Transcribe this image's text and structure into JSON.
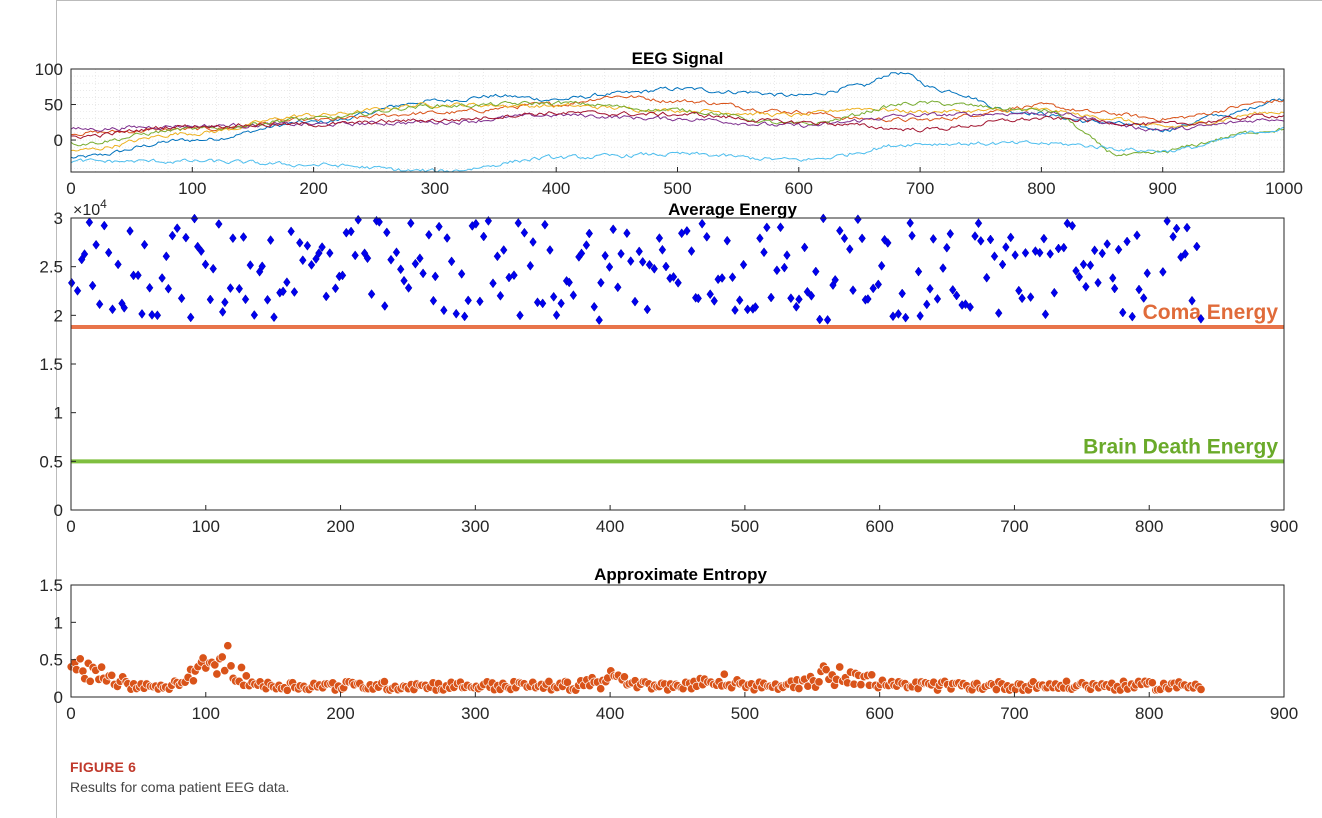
{
  "figure": {
    "label": "FIGURE 6",
    "caption": "Results for coma patient EEG data."
  },
  "chart_data": [
    {
      "type": "line",
      "title": "EEG Signal",
      "xlim": [
        0,
        1000
      ],
      "ylim": [
        -45,
        100
      ],
      "xticks": [
        0,
        100,
        200,
        300,
        400,
        500,
        600,
        700,
        800,
        900,
        1000
      ],
      "yticks": [
        0,
        50,
        100
      ],
      "grid": true,
      "series": [
        {
          "color": "#0072BD",
          "x": [
            0,
            100,
            200,
            300,
            350,
            400,
            450,
            500,
            550,
            600,
            650,
            680,
            720,
            780,
            850,
            900,
            950,
            1000
          ],
          "y": [
            -25,
            0,
            25,
            55,
            62,
            57,
            65,
            72,
            68,
            62,
            75,
            95,
            70,
            40,
            25,
            15,
            35,
            58
          ]
        },
        {
          "color": "#D95319",
          "x": [
            0,
            100,
            200,
            300,
            400,
            450,
            500,
            600,
            650,
            700,
            800,
            850,
            900,
            1000
          ],
          "y": [
            10,
            15,
            28,
            38,
            50,
            62,
            55,
            40,
            30,
            28,
            48,
            38,
            30,
            55
          ]
        },
        {
          "color": "#EDB120",
          "x": [
            0,
            100,
            200,
            300,
            400,
            500,
            600,
            650,
            700,
            800,
            850,
            900,
            1000
          ],
          "y": [
            -15,
            10,
            35,
            50,
            48,
            42,
            35,
            45,
            40,
            42,
            32,
            18,
            40
          ]
        },
        {
          "color": "#7E2F8E",
          "x": [
            0,
            100,
            200,
            300,
            400,
            500,
            600,
            700,
            800,
            900,
            1000
          ],
          "y": [
            15,
            20,
            22,
            25,
            35,
            30,
            20,
            35,
            38,
            15,
            30
          ]
        },
        {
          "color": "#77AC30",
          "x": [
            0,
            100,
            200,
            300,
            400,
            500,
            600,
            700,
            800,
            870,
            1000
          ],
          "y": [
            -5,
            15,
            30,
            48,
            52,
            42,
            22,
            52,
            42,
            -22,
            15
          ]
        },
        {
          "color": "#4DBEEE",
          "x": [
            0,
            100,
            200,
            300,
            400,
            500,
            600,
            700,
            800,
            900,
            1000
          ],
          "y": [
            -30,
            -30,
            -35,
            -44,
            -25,
            -20,
            -28,
            -5,
            -5,
            -15,
            15
          ]
        },
        {
          "color": "#A2142F",
          "x": [
            0,
            100,
            200,
            300,
            400,
            500,
            600,
            700,
            800,
            900,
            1000
          ],
          "y": [
            5,
            20,
            22,
            28,
            38,
            36,
            25,
            15,
            30,
            22,
            35
          ]
        }
      ]
    },
    {
      "type": "scatter",
      "title": "Average Energy",
      "xlim": [
        0,
        900
      ],
      "ylim": [
        0,
        30000
      ],
      "xticks": [
        0,
        100,
        200,
        300,
        400,
        500,
        600,
        700,
        800,
        900
      ],
      "yticks": [
        0,
        0.5,
        1,
        1.5,
        2,
        2.5,
        3
      ],
      "y_exponent_label": "×10",
      "y_exponent": "4",
      "marker": "diamond",
      "marker_color": "#0000EE",
      "n_points": 840,
      "value_range": [
        19500,
        30000
      ],
      "reference_lines": [
        {
          "label": "Coma Energy",
          "value": 18800,
          "color": "#E8744A",
          "text_color": "#E06B3A"
        },
        {
          "label": "Brain Death Energy",
          "value": 5000,
          "color": "#7FBF3F",
          "text_color": "#6AAA2A"
        }
      ]
    },
    {
      "type": "scatter",
      "title": "Approximate Entropy",
      "xlim": [
        0,
        900
      ],
      "ylim": [
        0,
        1.5
      ],
      "xticks": [
        0,
        100,
        200,
        300,
        400,
        500,
        600,
        700,
        800,
        900
      ],
      "yticks": [
        0,
        0.5,
        1,
        1.5
      ],
      "marker": "circle",
      "marker_color": "#D95319",
      "n_points": 840,
      "baseline": 0.15,
      "peaks": [
        {
          "x": 10,
          "y": 0.55
        },
        {
          "x": 100,
          "y": 0.55
        },
        {
          "x": 115,
          "y": 0.52
        },
        {
          "x": 400,
          "y": 0.38
        },
        {
          "x": 480,
          "y": 0.32
        },
        {
          "x": 555,
          "y": 0.38
        },
        {
          "x": 580,
          "y": 0.4
        }
      ]
    }
  ]
}
